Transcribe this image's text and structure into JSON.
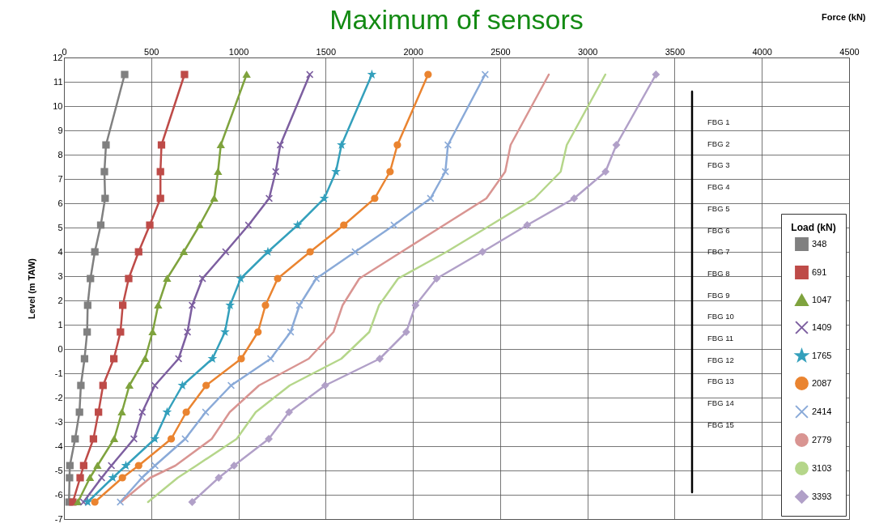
{
  "chart_data": {
    "type": "line",
    "title": "Maximum of sensors",
    "xlabel": "Force (kN)",
    "ylabel": "Level (m TAW)",
    "legend_title": "Load (kN)",
    "xlim": [
      0,
      4500
    ],
    "xticks": [
      0,
      500,
      1000,
      1500,
      2000,
      2500,
      3000,
      3500,
      4000,
      4500
    ],
    "ylim": [
      -7,
      12
    ],
    "yticks": [
      -7,
      -6,
      -5,
      -4,
      -3,
      -2,
      -1,
      0,
      1,
      2,
      3,
      4,
      5,
      6,
      7,
      8,
      9,
      10,
      11,
      12
    ],
    "grid": true,
    "legend": "bottom right",
    "line_style": "solid",
    "series": [
      {
        "name": "348",
        "color": "#808080",
        "marker": "square",
        "x": [
          348,
          241,
          232,
          236,
          211,
          177,
          152,
          136,
          133,
          118,
          97,
          89,
          64,
          34,
          32,
          29
        ],
        "values": [
          11.3,
          8.4,
          7.3,
          6.2,
          5.1,
          4.0,
          2.9,
          1.8,
          0.7,
          -0.4,
          -1.5,
          -2.6,
          -3.7,
          -4.8,
          -5.3,
          -6.3
        ]
      },
      {
        "name": "691",
        "color": "#be4b48",
        "marker": "square",
        "x": [
          691,
          559,
          553,
          553,
          492,
          428,
          371,
          337,
          324,
          286,
          224,
          198,
          169,
          113,
          93,
          51
        ],
        "values": [
          11.3,
          8.4,
          7.3,
          6.2,
          5.1,
          4.0,
          2.9,
          1.8,
          0.7,
          -0.4,
          -1.5,
          -2.6,
          -3.7,
          -4.8,
          -5.3,
          -6.3
        ]
      },
      {
        "name": "1047",
        "color": "#7fa33e",
        "marker": "triangle",
        "x": [
          1047,
          899,
          883,
          861,
          778,
          687,
          591,
          540,
          508,
          465,
          375,
          332,
          288,
          192,
          149,
          80
        ],
        "values": [
          11.3,
          8.4,
          7.3,
          6.2,
          5.1,
          4.0,
          2.9,
          1.8,
          0.7,
          -0.4,
          -1.5,
          -2.6,
          -3.7,
          -4.8,
          -5.3,
          -6.3
        ]
      },
      {
        "name": "1409",
        "color": "#7d5fa0",
        "marker": "cross",
        "x": [
          1409,
          1240,
          1214,
          1176,
          1058,
          927,
          794,
          735,
          708,
          657,
          521,
          449,
          401,
          272,
          216,
          112
        ],
        "values": [
          11.3,
          8.4,
          7.3,
          6.2,
          5.1,
          4.0,
          2.9,
          1.8,
          0.7,
          -0.4,
          -1.5,
          -2.6,
          -3.7,
          -4.8,
          -5.3,
          -6.3
        ]
      },
      {
        "name": "1765",
        "color": "#34a0bc",
        "marker": "star",
        "x": [
          1765,
          1591,
          1559,
          1492,
          1339,
          1169,
          1013,
          952,
          923,
          851,
          679,
          591,
          521,
          355,
          280,
          136
        ],
        "values": [
          11.3,
          8.4,
          7.3,
          6.2,
          5.1,
          4.0,
          2.9,
          1.8,
          0.7,
          -0.4,
          -1.5,
          -2.6,
          -3.7,
          -4.8,
          -5.3,
          -6.3
        ]
      },
      {
        "name": "2087",
        "color": "#ea8430",
        "marker": "circle",
        "x": [
          2087,
          1911,
          1869,
          1781,
          1604,
          1411,
          1225,
          1155,
          1112,
          1016,
          815,
          701,
          615,
          428,
          335,
          177
        ],
        "values": [
          11.3,
          8.4,
          7.3,
          6.2,
          5.1,
          4.0,
          2.9,
          1.8,
          0.7,
          -0.4,
          -1.5,
          -2.6,
          -3.7,
          -4.8,
          -5.3,
          -6.3
        ]
      },
      {
        "name": "2414",
        "color": "#8aaad8",
        "marker": "cross",
        "x": [
          2414,
          2201,
          2186,
          2101,
          1892,
          1669,
          1446,
          1350,
          1299,
          1185,
          958,
          812,
          695,
          522,
          447,
          323
        ],
        "values": [
          11.3,
          8.4,
          7.3,
          6.2,
          5.1,
          4.0,
          2.9,
          1.8,
          0.7,
          -0.4,
          -1.5,
          -2.6,
          -3.7,
          -4.8,
          -5.3,
          -6.3
        ]
      },
      {
        "name": "2779",
        "color": "#d99592",
        "marker": "none",
        "x": [
          2779,
          2560,
          2529,
          2421,
          2178,
          1935,
          1693,
          1597,
          1545,
          1403,
          1118,
          950,
          847,
          639,
          495,
          327
        ],
        "values": [
          11.3,
          8.4,
          7.3,
          6.2,
          5.1,
          4.0,
          2.9,
          1.8,
          0.7,
          -0.4,
          -1.5,
          -2.6,
          -3.7,
          -4.8,
          -5.3,
          -6.3
        ]
      },
      {
        "name": "3103",
        "color": "#b5d68a",
        "marker": "none",
        "x": [
          3103,
          2882,
          2847,
          2697,
          2446,
          2193,
          1915,
          1806,
          1750,
          1590,
          1294,
          1099,
          990,
          759,
          652,
          482
        ],
        "values": [
          11.3,
          8.4,
          7.3,
          6.2,
          5.1,
          4.0,
          2.9,
          1.8,
          0.7,
          -0.4,
          -1.5,
          -2.6,
          -3.7,
          -4.8,
          -5.3,
          -6.3
        ]
      },
      {
        "name": "3393",
        "color": "#b1a0c8",
        "marker": "diamond",
        "x": [
          3393,
          3166,
          3104,
          2924,
          2655,
          2399,
          2136,
          2015,
          1962,
          1810,
          1497,
          1290,
          1174,
          975,
          887,
          735
        ],
        "values": [
          11.3,
          8.4,
          7.3,
          6.2,
          5.1,
          4.0,
          2.9,
          1.8,
          0.7,
          -0.4,
          -1.5,
          -2.6,
          -3.7,
          -4.8,
          -5.3,
          -6.3
        ]
      },
      {
        "color": "#000000",
        "marker": "none",
        "x": [
          3600,
          3600
        ],
        "values": [
          10.6,
          -5.9
        ]
      }
    ],
    "annotations": [
      "FBG 1",
      "FBG 2",
      "FBG 3",
      "FBG 4",
      "FBG 5",
      "FBG 6",
      "FBG 7",
      "FBG 8",
      "FBG 9",
      "FBG 10",
      "FBG 11",
      "FBG 12",
      "FBG 13",
      "FBG 14",
      "FBG 15"
    ]
  }
}
